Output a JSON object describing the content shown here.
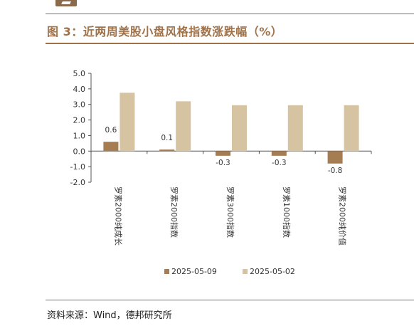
{
  "header": {
    "title": "图 3：近两周美股小盘风格指数涨跌幅（%）"
  },
  "footer": {
    "source": "资料来源：Wind，德邦研究所"
  },
  "colors": {
    "accent": "#a0724a",
    "series_0": "#a67c52",
    "series_1": "#d6c3a2",
    "axis": "#555555",
    "text": "#333333"
  },
  "chart_data": {
    "type": "bar",
    "categories": [
      "罗素2000纯成长",
      "罗素2000指数",
      "罗素3000指数",
      "罗素1000指数",
      "罗素2000纯价值"
    ],
    "series": [
      {
        "name": "2025-05-09",
        "values": [
          0.6,
          0.1,
          -0.3,
          -0.3,
          -0.8
        ],
        "data_labels": [
          "0.6",
          "0.1",
          "-0.3",
          "-0.3",
          "-0.8"
        ]
      },
      {
        "name": "2025-05-02",
        "values": [
          3.75,
          3.2,
          2.95,
          2.95,
          2.95
        ]
      }
    ],
    "ylim": [
      -2.0,
      5.0
    ],
    "yticks": [
      "5.0",
      "4.0",
      "3.0",
      "2.0",
      "1.0",
      "0.0",
      "-1.0",
      "-2.0"
    ],
    "grid": false,
    "legend_position": "bottom"
  }
}
